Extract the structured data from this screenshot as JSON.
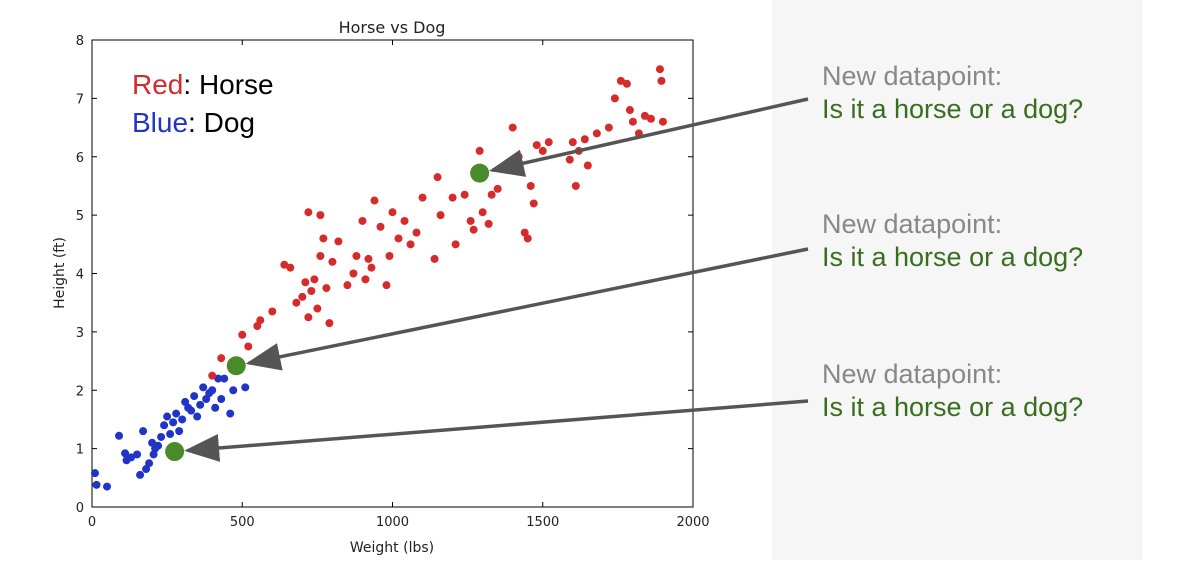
{
  "chart_data": {
    "type": "scatter",
    "title": "Horse vs Dog",
    "xlabel": "Weight (lbs)",
    "ylabel": "Height (ft)",
    "xlim": [
      0,
      2000
    ],
    "ylim": [
      0,
      8
    ],
    "xticks": [
      0,
      500,
      1000,
      1500,
      2000
    ],
    "yticks": [
      0,
      1,
      2,
      3,
      4,
      5,
      6,
      7,
      8
    ],
    "grid": false,
    "legend": {
      "placement": "top-left",
      "entries": [
        {
          "color_word": "Red",
          "label": "Horse",
          "color": "#d52b2b"
        },
        {
          "color_word": "Blue",
          "label": "Dog",
          "color": "#2035c8"
        }
      ]
    },
    "series": [
      {
        "name": "Dog",
        "color": "#2035c8",
        "points": [
          [
            10,
            0.58
          ],
          [
            15,
            0.38
          ],
          [
            50,
            0.35
          ],
          [
            90,
            1.22
          ],
          [
            110,
            0.92
          ],
          [
            115,
            0.8
          ],
          [
            130,
            0.85
          ],
          [
            150,
            0.9
          ],
          [
            160,
            0.55
          ],
          [
            170,
            1.3
          ],
          [
            180,
            0.65
          ],
          [
            190,
            0.75
          ],
          [
            200,
            1.1
          ],
          [
            205,
            0.9
          ],
          [
            210,
            1.0
          ],
          [
            220,
            1.05
          ],
          [
            230,
            1.2
          ],
          [
            240,
            1.4
          ],
          [
            250,
            1.55
          ],
          [
            260,
            1.25
          ],
          [
            270,
            1.45
          ],
          [
            280,
            1.6
          ],
          [
            290,
            1.3
          ],
          [
            300,
            1.5
          ],
          [
            310,
            1.8
          ],
          [
            320,
            1.7
          ],
          [
            330,
            1.65
          ],
          [
            340,
            1.9
          ],
          [
            350,
            1.55
          ],
          [
            360,
            1.75
          ],
          [
            370,
            2.05
          ],
          [
            380,
            1.85
          ],
          [
            390,
            1.95
          ],
          [
            400,
            2.0
          ],
          [
            410,
            1.7
          ],
          [
            420,
            2.2
          ],
          [
            430,
            1.85
          ],
          [
            440,
            2.2
          ],
          [
            460,
            1.6
          ],
          [
            470,
            2.0
          ],
          [
            510,
            2.05
          ]
        ]
      },
      {
        "name": "Horse",
        "color": "#d52b2b",
        "points": [
          [
            400,
            2.25
          ],
          [
            430,
            2.55
          ],
          [
            500,
            2.95
          ],
          [
            520,
            2.75
          ],
          [
            550,
            3.1
          ],
          [
            560,
            3.2
          ],
          [
            600,
            3.35
          ],
          [
            640,
            4.15
          ],
          [
            660,
            4.1
          ],
          [
            680,
            3.5
          ],
          [
            700,
            3.6
          ],
          [
            710,
            3.85
          ],
          [
            720,
            3.25
          ],
          [
            730,
            3.7
          ],
          [
            740,
            3.9
          ],
          [
            750,
            3.4
          ],
          [
            760,
            4.3
          ],
          [
            770,
            4.6
          ],
          [
            780,
            3.75
          ],
          [
            790,
            3.15
          ],
          [
            720,
            5.05
          ],
          [
            760,
            5.0
          ],
          [
            800,
            4.2
          ],
          [
            820,
            4.55
          ],
          [
            850,
            3.8
          ],
          [
            870,
            4.0
          ],
          [
            880,
            4.3
          ],
          [
            900,
            4.9
          ],
          [
            910,
            3.9
          ],
          [
            920,
            4.25
          ],
          [
            930,
            4.1
          ],
          [
            940,
            5.25
          ],
          [
            960,
            4.8
          ],
          [
            980,
            3.8
          ],
          [
            990,
            4.3
          ],
          [
            1000,
            5.05
          ],
          [
            1020,
            4.6
          ],
          [
            1040,
            4.9
          ],
          [
            1060,
            4.5
          ],
          [
            1080,
            4.7
          ],
          [
            1100,
            5.3
          ],
          [
            1140,
            4.25
          ],
          [
            1150,
            5.65
          ],
          [
            1160,
            5.0
          ],
          [
            1200,
            5.3
          ],
          [
            1210,
            4.5
          ],
          [
            1240,
            5.35
          ],
          [
            1260,
            4.9
          ],
          [
            1270,
            4.75
          ],
          [
            1290,
            6.1
          ],
          [
            1300,
            5.05
          ],
          [
            1320,
            4.85
          ],
          [
            1330,
            5.35
          ],
          [
            1350,
            5.45
          ],
          [
            1400,
            6.5
          ],
          [
            1420,
            6.0
          ],
          [
            1440,
            4.7
          ],
          [
            1450,
            4.6
          ],
          [
            1460,
            5.5
          ],
          [
            1470,
            5.2
          ],
          [
            1480,
            6.2
          ],
          [
            1500,
            6.1
          ],
          [
            1520,
            6.25
          ],
          [
            1590,
            5.95
          ],
          [
            1600,
            6.25
          ],
          [
            1610,
            5.5
          ],
          [
            1620,
            6.1
          ],
          [
            1640,
            6.3
          ],
          [
            1650,
            5.85
          ],
          [
            1680,
            6.4
          ],
          [
            1720,
            6.5
          ],
          [
            1740,
            7.0
          ],
          [
            1760,
            7.3
          ],
          [
            1780,
            7.25
          ],
          [
            1790,
            6.8
          ],
          [
            1800,
            6.6
          ],
          [
            1820,
            6.4
          ],
          [
            1840,
            6.7
          ],
          [
            1860,
            6.65
          ],
          [
            1890,
            7.5
          ],
          [
            1895,
            7.3
          ],
          [
            1900,
            6.6
          ]
        ]
      },
      {
        "name": "New datapoint",
        "color": "#4a8a2a",
        "points": [
          [
            1290,
            5.72
          ],
          [
            480,
            2.42
          ],
          [
            275,
            0.95
          ]
        ]
      }
    ],
    "annotations": [
      {
        "line1": "New datapoint:",
        "line2": "Is it a horse or a dog?",
        "target": [
          1290,
          5.72
        ]
      },
      {
        "line1": "New datapoint:",
        "line2": "Is it a horse or a dog?",
        "target": [
          480,
          2.42
        ]
      },
      {
        "line1": "New datapoint:",
        "line2": "Is it a horse or a dog?",
        "target": [
          275,
          0.95
        ]
      }
    ]
  }
}
